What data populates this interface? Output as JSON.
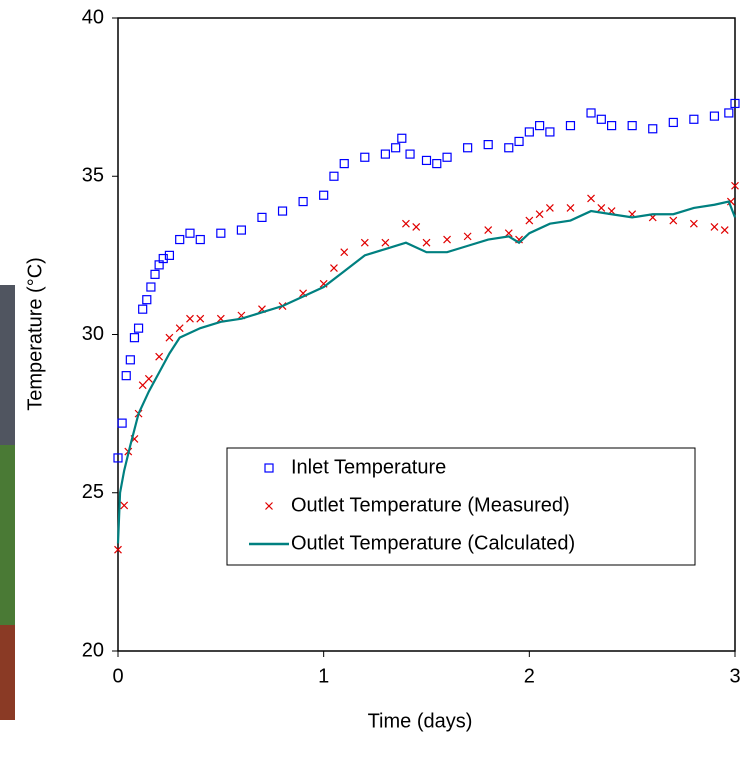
{
  "chart_data": {
    "type": "line",
    "xlabel": "Time (days)",
    "ylabel": "Temperature (°C)",
    "xlim": [
      0,
      3
    ],
    "xticks": [
      0,
      1,
      2,
      3
    ],
    "ylim": [
      20,
      40
    ],
    "yticks": [
      20,
      25,
      30,
      35,
      40
    ],
    "legend": "lower right",
    "series": [
      {
        "name": "Inlet Temperature",
        "color": "#0000ff",
        "marker": "square",
        "x": [
          0,
          0.02,
          0.04,
          0.06,
          0.08,
          0.1,
          0.12,
          0.14,
          0.16,
          0.18,
          0.2,
          0.22,
          0.25,
          0.3,
          0.35,
          0.4,
          0.5,
          0.6,
          0.7,
          0.8,
          0.9,
          1.0,
          1.05,
          1.1,
          1.2,
          1.3,
          1.35,
          1.38,
          1.42,
          1.5,
          1.55,
          1.6,
          1.7,
          1.8,
          1.9,
          1.95,
          2.0,
          2.05,
          2.1,
          2.2,
          2.3,
          2.35,
          2.4,
          2.5,
          2.6,
          2.7,
          2.8,
          2.9,
          2.97,
          3.0
        ],
        "values": [
          26.1,
          27.2,
          28.7,
          29.2,
          29.9,
          30.2,
          30.8,
          31.1,
          31.5,
          31.9,
          32.2,
          32.4,
          32.5,
          33.0,
          33.2,
          33.0,
          33.2,
          33.3,
          33.7,
          33.9,
          34.2,
          34.4,
          35.0,
          35.4,
          35.6,
          35.7,
          35.9,
          36.2,
          35.7,
          35.5,
          35.4,
          35.6,
          35.9,
          36.0,
          35.9,
          36.1,
          36.4,
          36.6,
          36.4,
          36.6,
          37.0,
          36.8,
          36.6,
          36.6,
          36.5,
          36.7,
          36.8,
          36.9,
          37.0,
          37.3
        ]
      },
      {
        "name": "Outlet Temperature (Measured)",
        "color": "#e00000",
        "marker": "cross",
        "x": [
          0,
          0.03,
          0.05,
          0.08,
          0.1,
          0.12,
          0.15,
          0.2,
          0.25,
          0.3,
          0.35,
          0.4,
          0.5,
          0.6,
          0.7,
          0.8,
          0.9,
          1.0,
          1.05,
          1.1,
          1.2,
          1.3,
          1.4,
          1.45,
          1.5,
          1.6,
          1.7,
          1.8,
          1.9,
          1.95,
          2.0,
          2.05,
          2.1,
          2.2,
          2.3,
          2.35,
          2.4,
          2.5,
          2.6,
          2.7,
          2.8,
          2.9,
          2.95,
          2.98,
          3.0
        ],
        "values": [
          23.2,
          24.6,
          26.3,
          26.7,
          27.5,
          28.4,
          28.6,
          29.3,
          29.9,
          30.2,
          30.5,
          30.5,
          30.5,
          30.6,
          30.8,
          30.9,
          31.3,
          31.6,
          32.1,
          32.6,
          32.9,
          32.9,
          33.5,
          33.4,
          32.9,
          33.0,
          33.1,
          33.3,
          33.2,
          33.0,
          33.6,
          33.8,
          34.0,
          34.0,
          34.3,
          34.0,
          33.9,
          33.8,
          33.7,
          33.6,
          33.5,
          33.4,
          33.3,
          34.2,
          34.7
        ]
      },
      {
        "name": "Outlet Temperature (Calculated)",
        "color": "#008080",
        "marker": "line",
        "x": [
          0,
          0.01,
          0.03,
          0.06,
          0.1,
          0.15,
          0.2,
          0.25,
          0.3,
          0.4,
          0.5,
          0.6,
          0.7,
          0.8,
          0.9,
          1.0,
          1.1,
          1.2,
          1.3,
          1.4,
          1.5,
          1.6,
          1.7,
          1.8,
          1.9,
          1.95,
          2.0,
          2.1,
          2.2,
          2.3,
          2.4,
          2.5,
          2.6,
          2.7,
          2.8,
          2.9,
          2.97,
          3.0
        ],
        "values": [
          23.4,
          25.0,
          25.7,
          26.5,
          27.5,
          28.2,
          28.8,
          29.4,
          29.9,
          30.2,
          30.4,
          30.5,
          30.7,
          30.9,
          31.2,
          31.5,
          32.0,
          32.5,
          32.7,
          32.9,
          32.6,
          32.6,
          32.8,
          33.0,
          33.1,
          32.9,
          33.2,
          33.5,
          33.6,
          33.9,
          33.8,
          33.7,
          33.8,
          33.8,
          34.0,
          34.1,
          34.2,
          33.7
        ]
      }
    ]
  }
}
